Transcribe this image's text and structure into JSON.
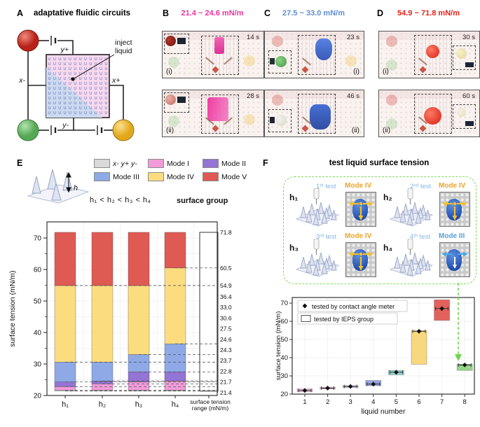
{
  "panels": {
    "A": {
      "letter": "A",
      "title": "adaptative fluidic circuits",
      "labels": {
        "y_plus": "y+",
        "y_minus": "y-",
        "x_minus": "x-",
        "x_plus": "x+"
      },
      "annotation_line1": "inject",
      "annotation_line2": "liquid",
      "sphere_colors": {
        "red": "#d03028",
        "green": "#72c26e",
        "yellow": "#f4c02e"
      }
    },
    "B": {
      "letter": "B",
      "range": "21.4 ~ 24.6 mN/m",
      "color": "#e8359e",
      "blob_color": "#e0309a",
      "frames": [
        {
          "id": "(i)",
          "time": "14 s"
        },
        {
          "id": "(ii)",
          "time": "28 s"
        }
      ]
    },
    "C": {
      "letter": "C",
      "range": "27.5 ~ 33.0 mN/m",
      "color": "#608fd2",
      "blob_color": "#3a63c8",
      "frames": [
        {
          "id": "(i)",
          "time": "23 s"
        },
        {
          "id": "(ii)",
          "time": "46 s"
        }
      ]
    },
    "D": {
      "letter": "D",
      "range": "54.9 ~ 71.8 mN/m",
      "color": "#e5231b",
      "blob_color": "#e02617",
      "frames": [
        {
          "id": "(i)",
          "time": "30 s"
        },
        {
          "id": "(ii)",
          "time": "60 s"
        }
      ]
    },
    "E": {
      "letter": "E",
      "inequality": "h₁ < h₂ < h₃ < h₄",
      "surface_group": "surface group",
      "height_symbol": "h"
    },
    "F": {
      "letter": "F",
      "title": "test liquid surface tension",
      "tests": [
        {
          "h": "h₁",
          "test": "1ˢᵗ test",
          "mode": "Mode IV"
        },
        {
          "h": "h₂",
          "test": "2ⁿᵈ test",
          "mode": "Mode IV"
        },
        {
          "h": "h₃",
          "test": "3ʳᵈ test",
          "mode": "Mode IV"
        },
        {
          "h": "h₄",
          "test": "4ᵗʰ test",
          "mode": "Mode III"
        }
      ],
      "mode_colors": {
        "Mode IV": "#f0a32b",
        "Mode III": "#57a0dc"
      },
      "test_color": "#85b5e2"
    }
  },
  "chart_data": [
    {
      "id": "E-stacked-bar",
      "type": "bar",
      "stacked": true,
      "ylabel": "surface tension (mN/m)",
      "ylim": [
        20,
        75
      ],
      "yticks": [
        20,
        30,
        40,
        50,
        60,
        70
      ],
      "categories": [
        "h₁",
        "h₂",
        "h₃",
        "h₄"
      ],
      "series": [
        {
          "name": "x- y+ y-",
          "color": "#d9d9d9",
          "italic": true,
          "ranges": [
            [
              21.4,
              21.7
            ],
            [
              21.4,
              21.7
            ],
            [
              21.4,
              21.7
            ],
            [
              21.4,
              21.7
            ]
          ]
        },
        {
          "name": "Mode I",
          "color": "#f19cda",
          "ranges": [
            [
              21.7,
              22.8
            ],
            [
              21.7,
              23.7
            ],
            [
              21.7,
              24.3
            ],
            [
              21.7,
              24.6
            ]
          ]
        },
        {
          "name": "Mode II",
          "color": "#9474d4",
          "ranges": [
            [
              22.8,
              24.3
            ],
            [
              23.7,
              24.6
            ],
            [
              24.3,
              27.5
            ],
            [
              24.6,
              27.5
            ]
          ]
        },
        {
          "name": "Mode III",
          "color": "#8ea9e6",
          "ranges": [
            [
              24.3,
              30.6
            ],
            [
              24.6,
              30.6
            ],
            [
              27.5,
              33.0
            ],
            [
              27.5,
              36.4
            ]
          ]
        },
        {
          "name": "Mode IV",
          "color": "#fbdd80",
          "ranges": [
            [
              30.6,
              54.9
            ],
            [
              30.6,
              54.9
            ],
            [
              33.0,
              54.9
            ],
            [
              36.4,
              60.5
            ]
          ]
        },
        {
          "name": "Mode V",
          "color": "#e05a54",
          "ranges": [
            [
              54.9,
              71.8
            ],
            [
              54.9,
              71.8
            ],
            [
              54.9,
              71.8
            ],
            [
              60.5,
              71.8
            ]
          ]
        }
      ],
      "reference_bar": {
        "label_line1": "surface tension",
        "label_line2": "range (mN/m)",
        "range": [
          21.4,
          71.8
        ]
      },
      "right_labels": [
        "71.8",
        "60.5",
        "54.9",
        "36.4",
        "33.0",
        "30.6",
        "27.5",
        "24.6",
        "24.3",
        "23.7",
        "22.8",
        "21.7",
        "21.4"
      ],
      "grid": true
    },
    {
      "id": "F-box-scatter",
      "type": "scatter",
      "xlabel": "liquid number",
      "ylabel": "surface tension (mN/m)",
      "ylim": [
        20,
        75
      ],
      "yticks": [
        20,
        30,
        40,
        50,
        60,
        70
      ],
      "x": [
        1,
        2,
        3,
        4,
        5,
        6,
        7,
        8
      ],
      "boxes": [
        {
          "lo": 21.4,
          "hi": 22.8,
          "color": "#f0b5da"
        },
        {
          "lo": 22.8,
          "hi": 23.7,
          "color": "#eab7dd"
        },
        {
          "lo": 23.7,
          "hi": 24.6,
          "color": "#c5b6e6"
        },
        {
          "lo": 24.6,
          "hi": 27.5,
          "color": "#98a4e2"
        },
        {
          "lo": 30.6,
          "hi": 33.0,
          "color": "#8fd8d2"
        },
        {
          "lo": 36.4,
          "hi": 54.9,
          "color": "#f8d87e"
        },
        {
          "lo": 60.5,
          "hi": 71.8,
          "color": "#e2625b"
        },
        {
          "lo": 33.0,
          "hi": 36.4,
          "color": "#97d689"
        }
      ],
      "points": [
        22.0,
        23.3,
        24.2,
        25.5,
        32.0,
        54.5,
        67.0,
        36.0
      ],
      "legend": [
        {
          "marker": "diamond",
          "label": "tested by contact angle meter"
        },
        {
          "marker": "open-box",
          "label": "tested by IEPS group"
        }
      ],
      "grid": true
    }
  ]
}
